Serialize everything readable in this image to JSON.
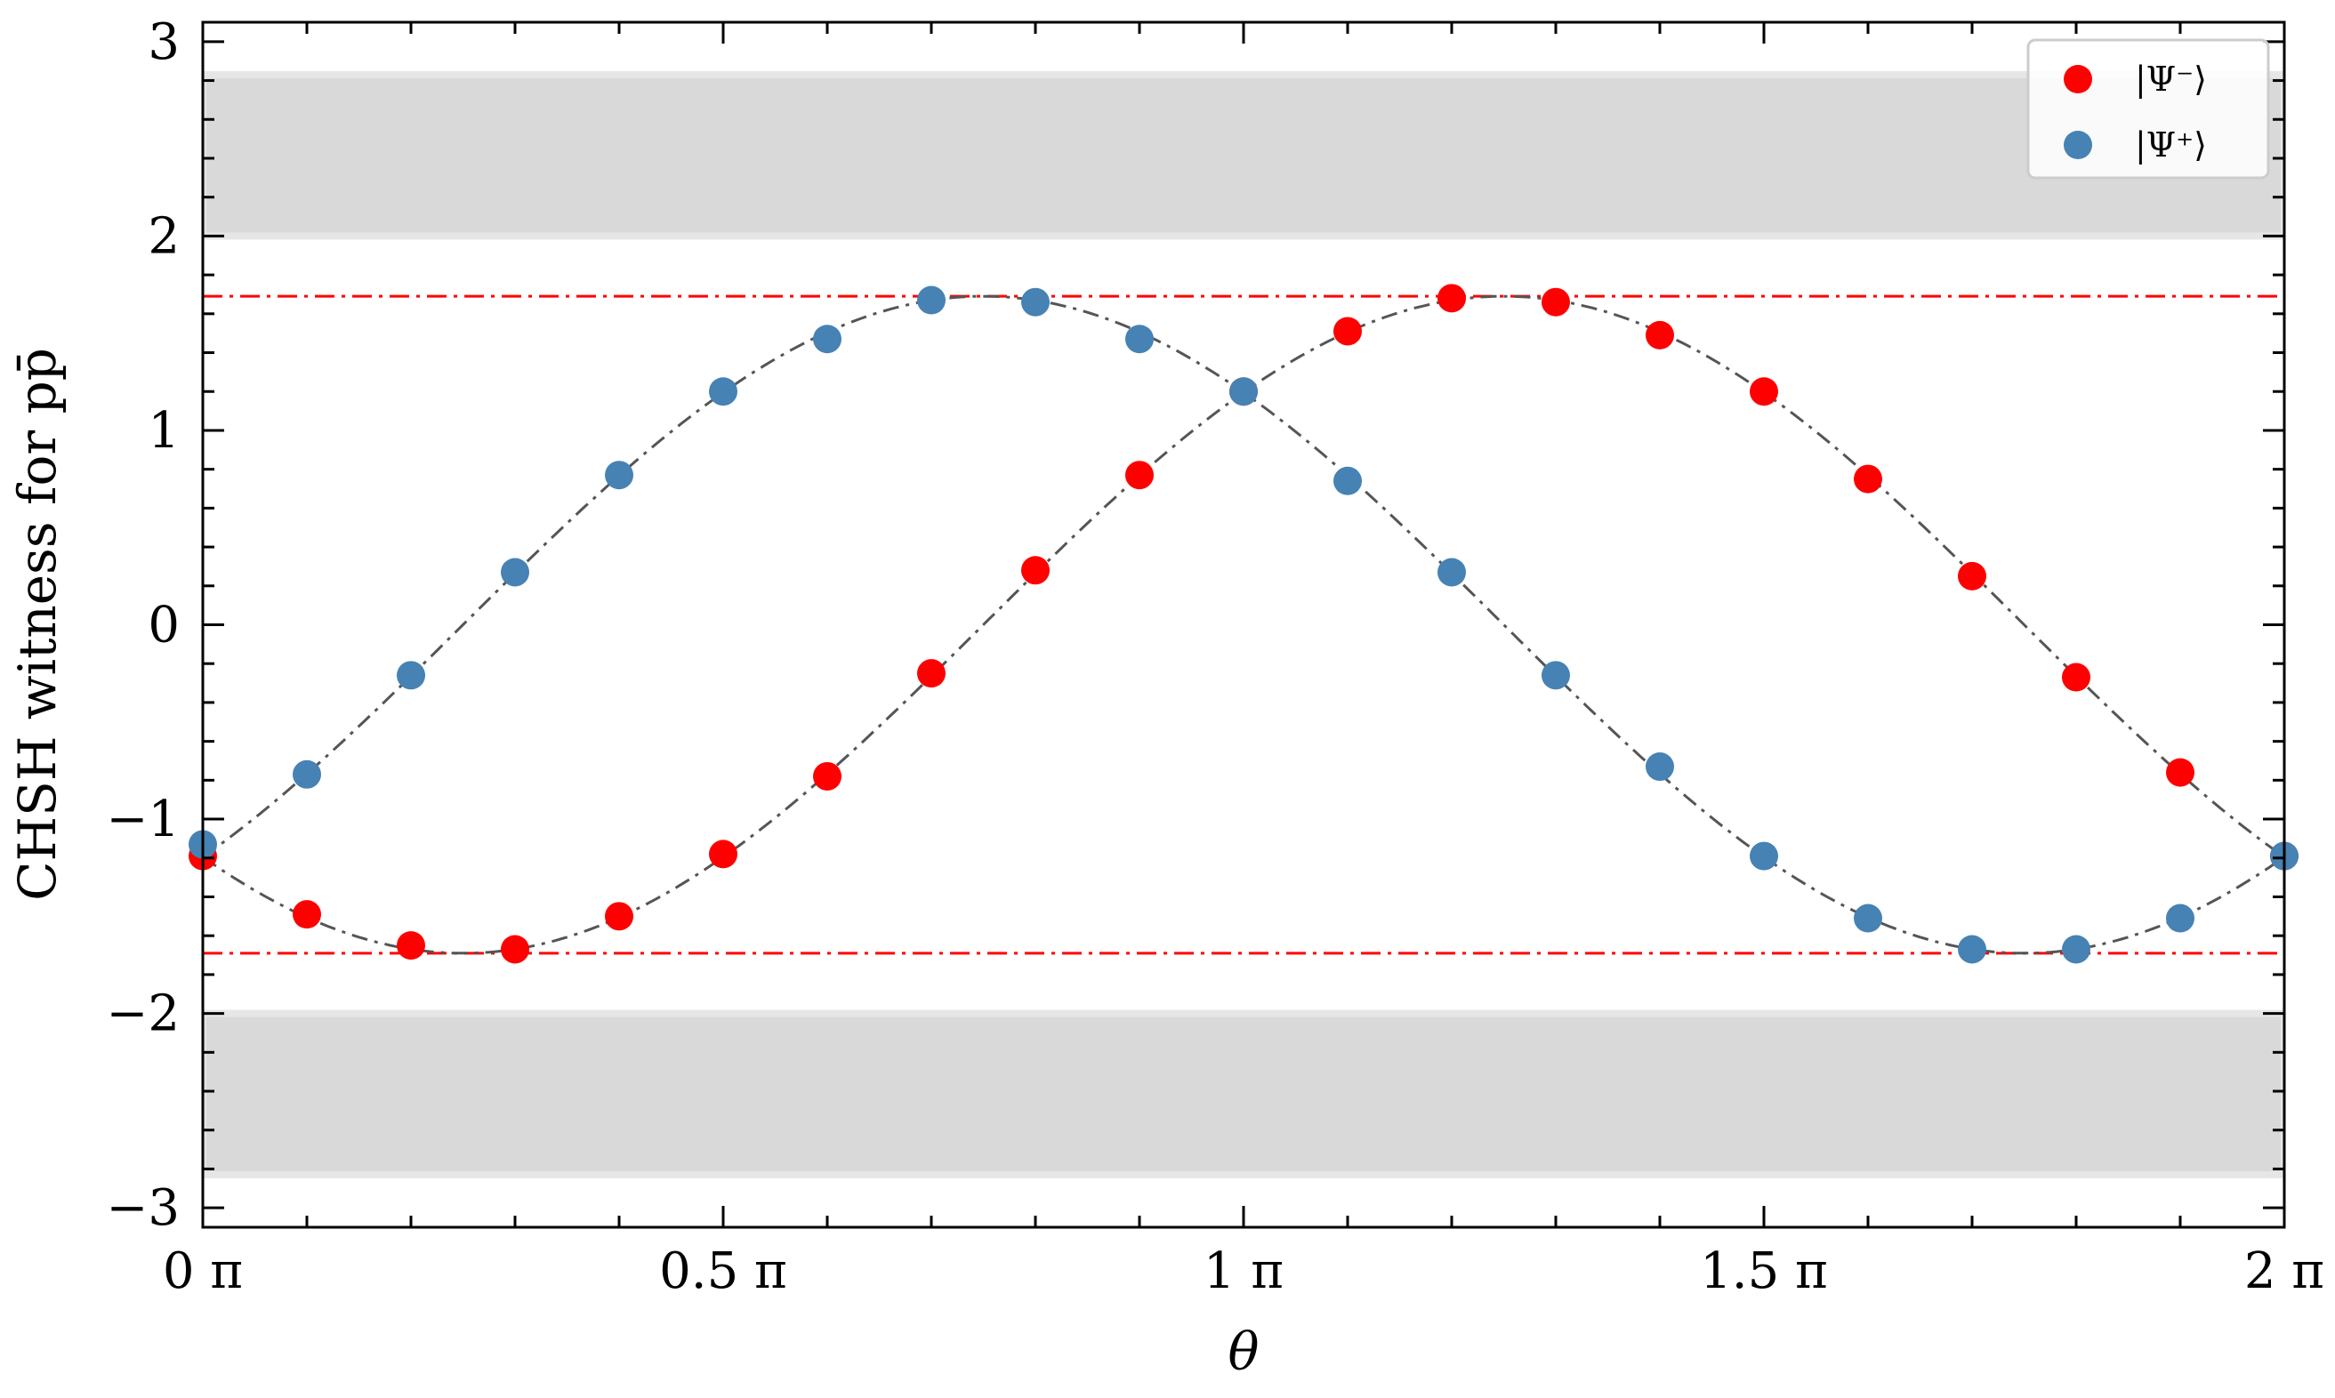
{
  "chart_data": {
    "type": "scatter",
    "xlabel": "θ",
    "ylabel": "CHSH witness for pp̄",
    "xlim": [
      0,
      2
    ],
    "ylim": [
      -3.1,
      3.1
    ],
    "x_unit": "π",
    "xticks": [
      0,
      0.5,
      1,
      1.5,
      2
    ],
    "xtick_labels": [
      "0 π",
      "0.5 π",
      "1 π",
      "1.5 π",
      "2 π"
    ],
    "yticks": [
      -3,
      -2,
      -1,
      0,
      1,
      2,
      3
    ],
    "ytick_labels": [
      "−3",
      "−2",
      "−1",
      "0",
      "1",
      "2",
      "3"
    ],
    "grid": false,
    "legend_position": "top-right",
    "shaded_bands": [
      {
        "y_from": 2,
        "y_to": 2.83
      },
      {
        "y_from": -2.83,
        "y_to": -2
      }
    ],
    "reference_lines": [
      {
        "y": 1.69,
        "color": "#ff0000",
        "style": "dash-dot"
      },
      {
        "y": -1.69,
        "color": "#ff0000",
        "style": "dash-dot"
      }
    ],
    "curve_amplitude": 1.69,
    "series": [
      {
        "name": "|Ψ⁻⟩",
        "color": "#ff0000",
        "x": [
          0,
          0.1,
          0.2,
          0.3,
          0.4,
          0.5,
          0.6,
          0.7,
          0.8,
          0.9,
          1.0,
          1.1,
          1.2,
          1.3,
          1.4,
          1.5,
          1.6,
          1.7,
          1.8,
          1.9,
          2.0
        ],
        "y": [
          -1.19,
          -1.49,
          -1.65,
          -1.67,
          -1.5,
          -1.18,
          -0.78,
          -0.25,
          0.28,
          0.77,
          1.2,
          1.51,
          1.68,
          1.66,
          1.49,
          1.2,
          0.75,
          0.25,
          -0.27,
          -0.76,
          -1.19
        ]
      },
      {
        "name": "|Ψ⁺⟩",
        "color": "#4682b4",
        "x": [
          0,
          0.1,
          0.2,
          0.3,
          0.4,
          0.5,
          0.6,
          0.7,
          0.8,
          0.9,
          1.0,
          1.1,
          1.2,
          1.3,
          1.4,
          1.5,
          1.6,
          1.7,
          1.8,
          1.9,
          2.0
        ],
        "y": [
          -1.13,
          -0.77,
          -0.26,
          0.27,
          0.77,
          1.2,
          1.47,
          1.67,
          1.66,
          1.47,
          1.2,
          0.74,
          0.27,
          -0.26,
          -0.73,
          -1.19,
          -1.51,
          -1.67,
          -1.67,
          -1.51,
          -1.19
        ]
      }
    ]
  }
}
